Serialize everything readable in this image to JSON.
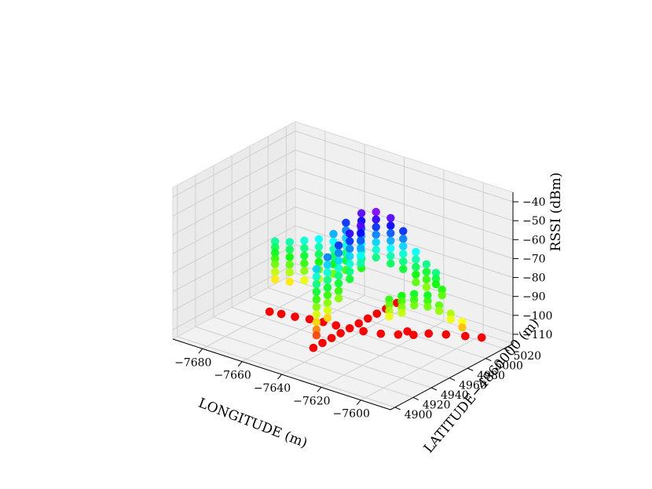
{
  "chart_data": {
    "type": "scatter",
    "projection": "3d",
    "xlabel": "LONGITUDE (m)",
    "ylabel": "LATITUDE−4860000 (m)",
    "zlabel": "RSSI (dBm)",
    "x_ticks": [
      "−7680",
      "−7660",
      "−7640",
      "−7620",
      "−7600"
    ],
    "y_ticks": [
      "4900",
      "4920",
      "4940",
      "4960",
      "4980",
      "5000",
      "5020"
    ],
    "z_ticks": [
      "−110",
      "−100",
      "−90",
      "−80",
      "−70",
      "−60",
      "−50",
      "−40"
    ],
    "xlim": [
      -7695,
      -7585
    ],
    "ylim": [
      4895,
      5030
    ],
    "zlim": [
      -115,
      -35
    ],
    "grid": true,
    "colormap": "gist_rainbow (red = low RSSI, magenta = high RSSI)",
    "colors": {
      "pane": "#f2f2f2",
      "grid": "#cfcfcf",
      "low": "#ff0000",
      "high": "#ff00ff"
    },
    "series": [
      {
        "values": [
          {
            "x": -7675,
            "y": 4958,
            "z": [
              -110,
              -110,
              -110,
              -110,
              -110
            ]
          },
          {
            "x": -7670,
            "y": 4960,
            "z": [
              -110,
              -110,
              -110,
              -110
            ]
          },
          {
            "x": -7664,
            "y": 4962,
            "z": [
              -110,
              -110,
              -110,
              -110
            ]
          },
          {
            "x": -7658,
            "y": 4965,
            "z": [
              -110,
              -110,
              -110
            ]
          },
          {
            "x": -7652,
            "y": 4967,
            "z": [
              -110,
              -110,
              -110
            ]
          },
          {
            "x": -7646,
            "y": 4968,
            "z": [
              -110,
              -110,
              -110,
              -110
            ]
          },
          {
            "x": -7640,
            "y": 4970,
            "z": [
              -110,
              -110,
              -110
            ]
          },
          {
            "x": -7634,
            "y": 4972,
            "z": [
              -110,
              -110,
              -110,
              -110
            ]
          },
          {
            "x": -7627,
            "y": 4976,
            "z": [
              -110,
              -110,
              -110
            ]
          },
          {
            "x": -7621,
            "y": 4982,
            "z": [
              -110,
              -110,
              -110
            ]
          },
          {
            "x": -7616,
            "y": 4988,
            "z": [
              -110,
              -110,
              -110
            ]
          },
          {
            "x": -7640,
            "y": 4930,
            "z": [
              -110,
              -110,
              -110
            ]
          },
          {
            "x": -7640,
            "y": 4940,
            "z": [
              -110,
              -110,
              -110
            ]
          },
          {
            "x": -7640,
            "y": 4950,
            "z": [
              -110,
              -110,
              -110
            ]
          },
          {
            "x": -7640,
            "y": 4960,
            "z": [
              -110,
              -110,
              -110
            ]
          },
          {
            "x": -7640,
            "y": 4980,
            "z": [
              -110,
              -110,
              -110
            ]
          },
          {
            "x": -7640,
            "y": 4990,
            "z": [
              -110,
              -110,
              -110
            ]
          },
          {
            "x": -7640,
            "y": 5000,
            "z": [
              -110,
              -110,
              -110
            ]
          },
          {
            "x": -7640,
            "y": 5010,
            "z": [
              -110,
              -110
            ]
          },
          {
            "x": -7640,
            "y": 5022,
            "z": [
              -110,
              -110
            ]
          },
          {
            "x": -7620,
            "y": 4990,
            "z": [
              -110,
              -110
            ]
          },
          {
            "x": -7612,
            "y": 4996,
            "z": [
              -110,
              -110,
              -110
            ]
          },
          {
            "x": -7606,
            "y": 5002,
            "z": [
              -110,
              -110,
              -110
            ]
          },
          {
            "x": -7599,
            "y": 5008,
            "z": [
              -110,
              -110,
              -110
            ]
          },
          {
            "x": -7593,
            "y": 5013,
            "z": [
              -110,
              -110,
              -110
            ]
          },
          {
            "x": -7680,
            "y": 4975,
            "z": [
              -79,
              -82,
              -85,
              -88,
              -91,
              -95,
              -99
            ]
          },
          {
            "x": -7674,
            "y": 4978,
            "z": [
              -78,
              -82,
              -86,
              -90,
              -94,
              -99
            ]
          },
          {
            "x": -7668,
            "y": 4981,
            "z": [
              -76,
              -80,
              -84,
              -88,
              -92,
              -97
            ]
          },
          {
            "x": -7662,
            "y": 4984,
            "z": [
              -74,
              -78,
              -82,
              -86,
              -90,
              -95
            ]
          },
          {
            "x": -7656,
            "y": 4987,
            "z": [
              -70,
              -74,
              -78,
              -82,
              -86,
              -91
            ]
          },
          {
            "x": -7652,
            "y": 4992,
            "z": [
              -64,
              -68,
              -72,
              -76,
              -80,
              -84,
              -89
            ]
          },
          {
            "x": -7646,
            "y": 4996,
            "z": [
              -58,
              -62,
              -66,
              -70,
              -74,
              -78,
              -82,
              -87
            ]
          },
          {
            "x": -7640,
            "y": 4999,
            "z": [
              -56,
              -60,
              -64,
              -68,
              -72,
              -76,
              -80
            ]
          },
          {
            "x": -7634,
            "y": 5002,
            "z": [
              -58,
              -62,
              -66,
              -70,
              -74,
              -78,
              -82
            ]
          },
          {
            "x": -7629,
            "y": 5005,
            "z": [
              -64,
              -68,
              -72,
              -76,
              -80,
              -84
            ]
          },
          {
            "x": -7624,
            "y": 5008,
            "z": [
              -74,
              -78,
              -82,
              -86,
              -90
            ]
          },
          {
            "x": -7620,
            "y": 5011,
            "z": [
              -80,
              -84,
              -88,
              -92
            ]
          },
          {
            "x": -7643,
            "y": 4940,
            "z": [
              -72,
              -76,
              -80,
              -84,
              -88,
              -92,
              -96,
              -100,
              -104,
              -107
            ]
          },
          {
            "x": -7642,
            "y": 4950,
            "z": [
              -68,
              -72,
              -76,
              -80,
              -84,
              -88,
              -92,
              -96,
              -100
            ]
          },
          {
            "x": -7641,
            "y": 4960,
            "z": [
              -64,
              -68,
              -72,
              -76,
              -80,
              -84,
              -88,
              -92
            ]
          },
          {
            "x": -7640,
            "y": 4970,
            "z": [
              -60,
              -64,
              -68,
              -72,
              -76,
              -80,
              -84
            ]
          },
          {
            "x": -7639,
            "y": 4980,
            "z": [
              -58,
              -62,
              -66,
              -70,
              -74,
              -78
            ]
          },
          {
            "x": -7620,
            "y": 4970,
            "z": [
              -88,
              -91,
              -94,
              -97
            ]
          },
          {
            "x": -7616,
            "y": 4975,
            "z": [
              -86,
              -89,
              -92,
              -95
            ]
          },
          {
            "x": -7612,
            "y": 4980,
            "z": [
              -85,
              -88,
              -91
            ]
          },
          {
            "x": -7607,
            "y": 4984,
            "z": [
              -85,
              -88,
              -91
            ]
          },
          {
            "x": -7603,
            "y": 4988,
            "z": [
              -90,
              -93
            ]
          },
          {
            "x": -7599,
            "y": 4992,
            "z": [
              -94,
              -97
            ]
          },
          {
            "x": -7595,
            "y": 4996,
            "z": [
              -98,
              -101
            ]
          },
          {
            "x": -7612,
            "y": 5004,
            "z": [
              -80,
              -83,
              -86
            ]
          },
          {
            "x": -7608,
            "y": 5002,
            "z": [
              -87,
              -90
            ]
          }
        ]
      }
    ]
  }
}
